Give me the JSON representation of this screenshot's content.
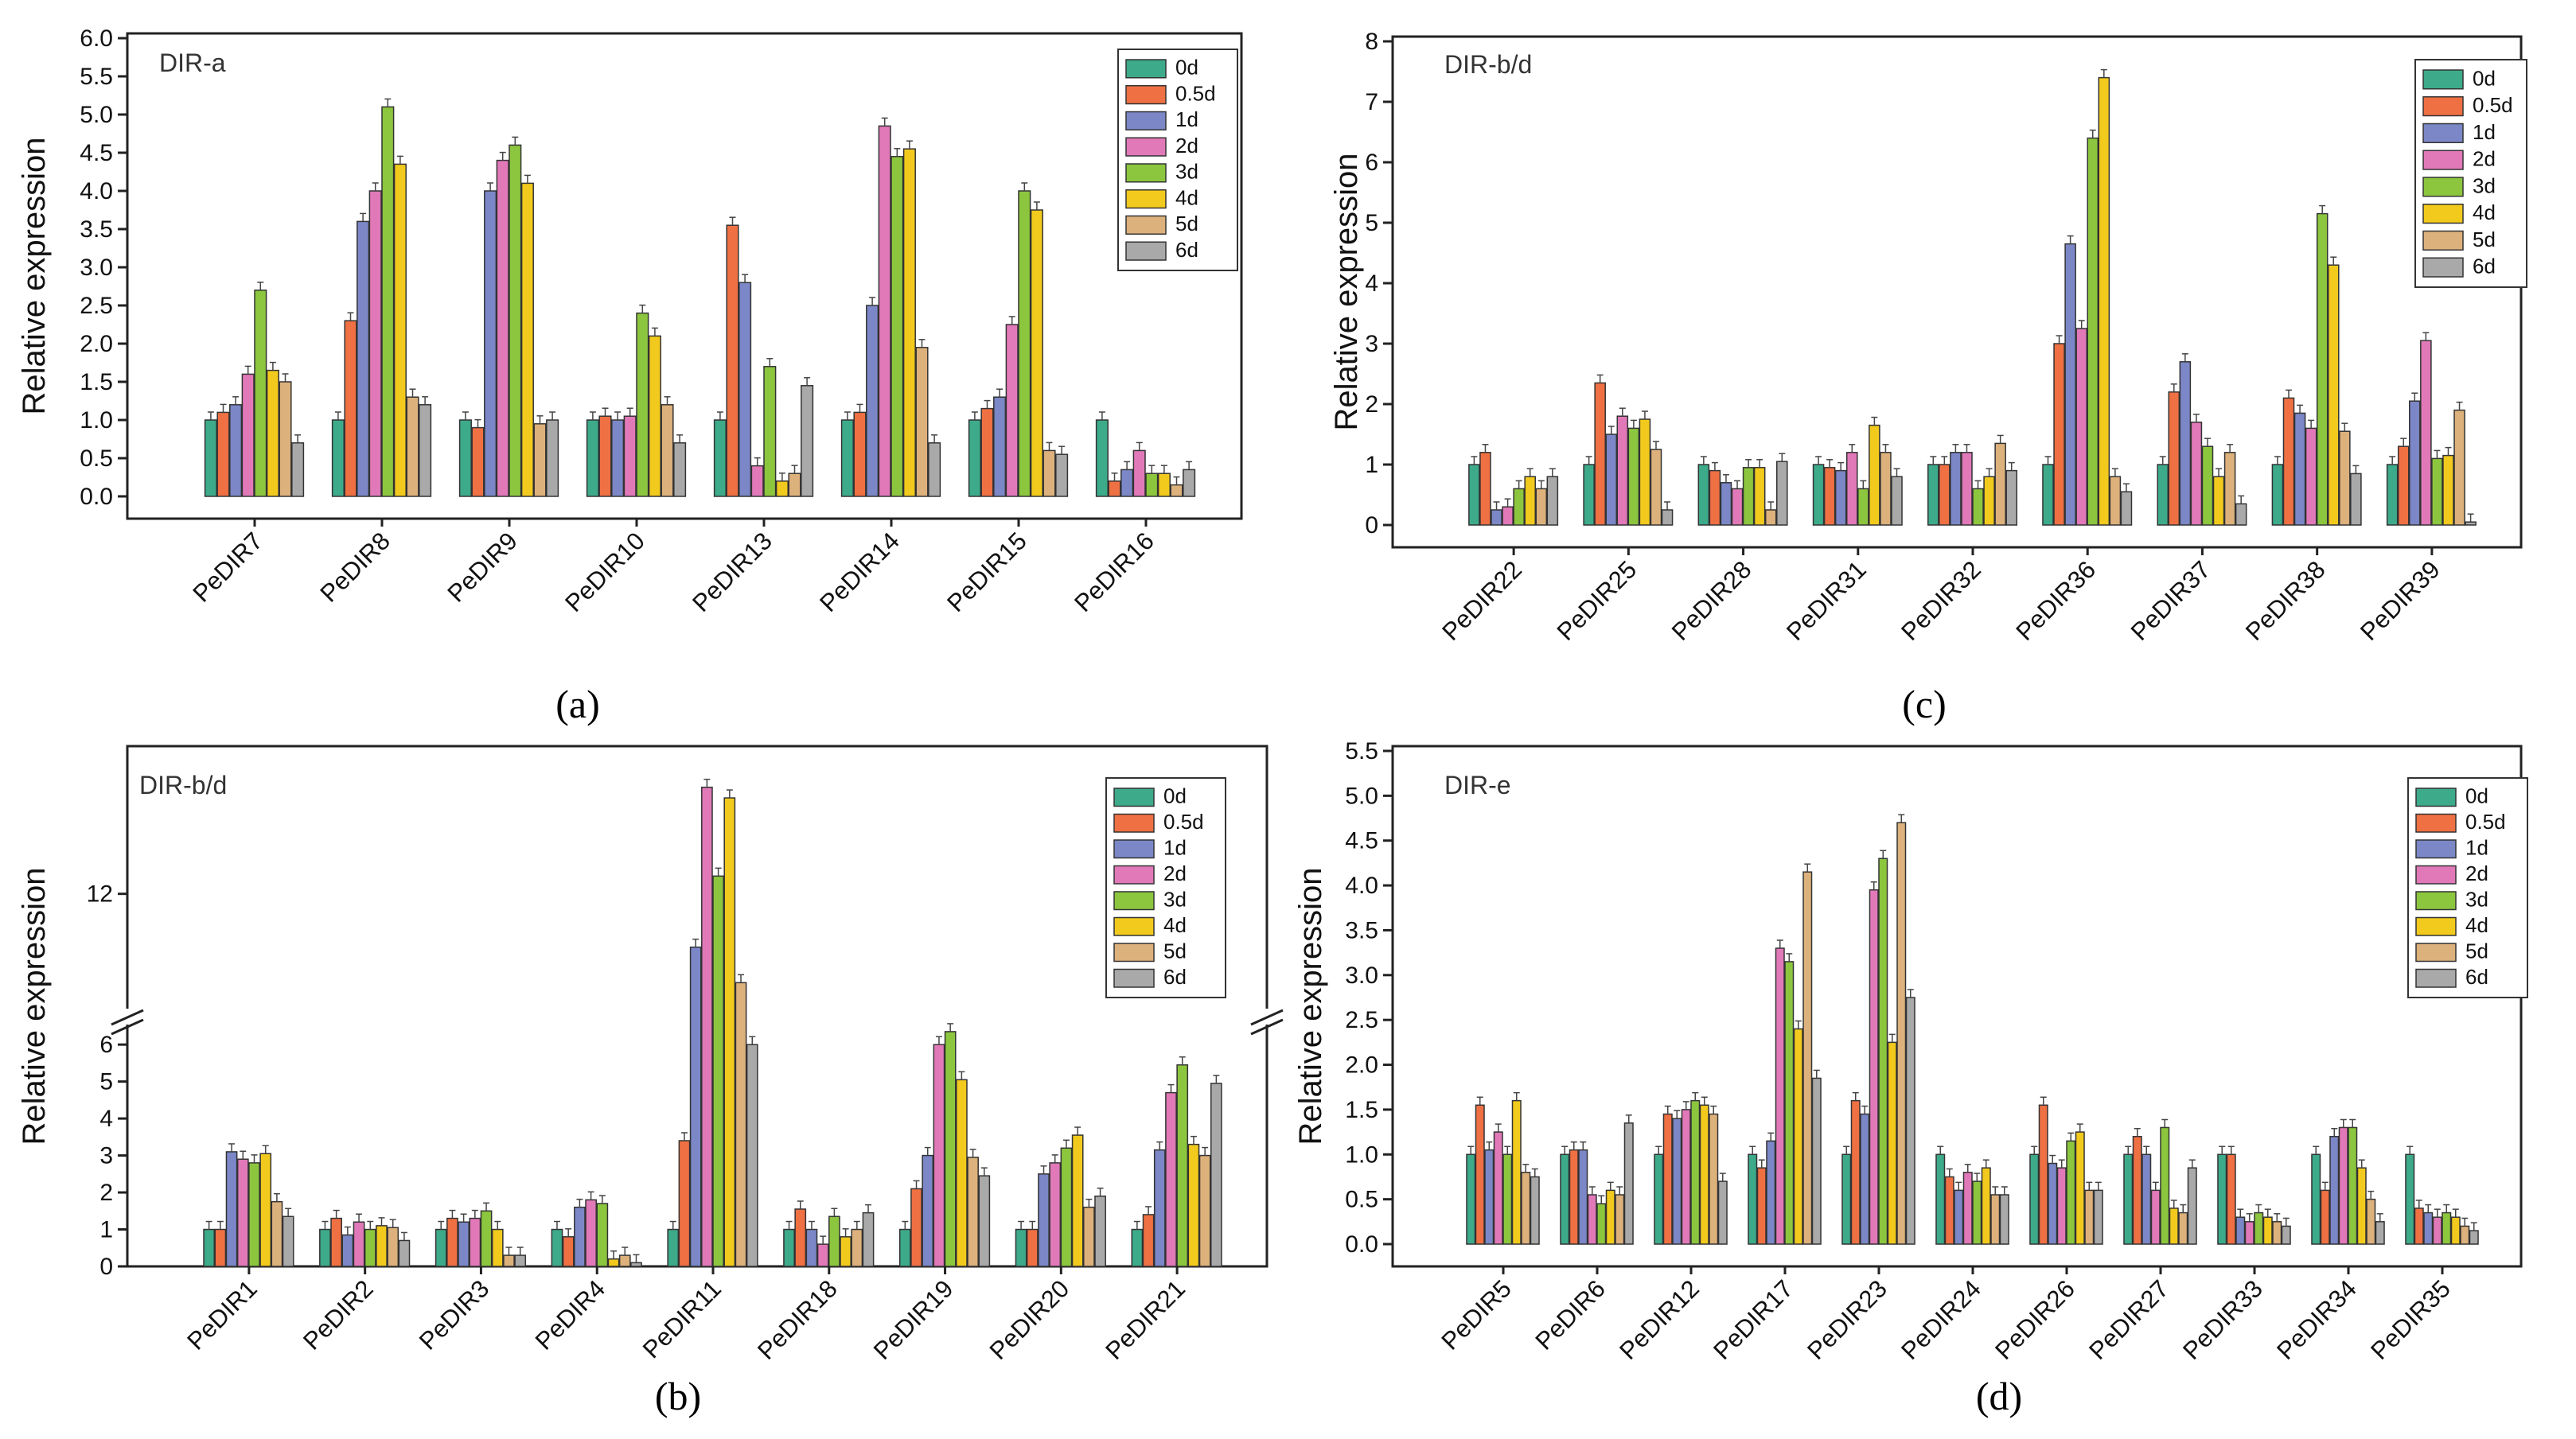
{
  "figure": {
    "captions": [
      "(a)",
      "(c)",
      "(b)",
      "(d)"
    ],
    "series_names": [
      "0d",
      "0.5d",
      "1d",
      "2d",
      "3d",
      "4d",
      "5d",
      "6d"
    ],
    "series_colors": [
      "#3daa8a",
      "#ef7043",
      "#7b87c6",
      "#e179b9",
      "#8cc63e",
      "#f2ca1d",
      "#ddb17c",
      "#a9a9a9"
    ]
  },
  "chart_data": [
    {
      "type": "bar",
      "panel": "a",
      "title": "DIR-a",
      "xlabel": "",
      "ylabel": "Relative expression",
      "ylim": [
        0,
        6
      ],
      "yticks": [
        "0.0",
        "0.5",
        "1.0",
        "1.5",
        "2.0",
        "2.5",
        "3.0",
        "3.5",
        "4.0",
        "4.5",
        "5.0",
        "5.5",
        "6.0"
      ],
      "legend_position": "top-right",
      "categories": [
        "PeDIR7",
        "PeDIR8",
        "PeDIR9",
        "PeDIR10",
        "PeDIR13",
        "PeDIR14",
        "PeDIR15",
        "PeDIR16"
      ],
      "series": [
        {
          "name": "0d",
          "values": [
            1.0,
            1.0,
            1.0,
            1.0,
            1.0,
            1.0,
            1.0,
            1.0
          ]
        },
        {
          "name": "0.5d",
          "values": [
            1.1,
            2.3,
            0.9,
            1.05,
            3.55,
            1.1,
            1.15,
            0.2
          ]
        },
        {
          "name": "1d",
          "values": [
            1.2,
            3.6,
            4.0,
            1.0,
            2.8,
            2.5,
            1.3,
            0.35
          ]
        },
        {
          "name": "2d",
          "values": [
            1.6,
            4.0,
            4.4,
            1.05,
            0.4,
            4.85,
            2.25,
            0.6
          ]
        },
        {
          "name": "3d",
          "values": [
            2.7,
            5.1,
            4.6,
            2.4,
            1.7,
            4.45,
            4.0,
            0.3
          ]
        },
        {
          "name": "4d",
          "values": [
            1.65,
            4.35,
            4.1,
            2.1,
            0.2,
            4.55,
            3.75,
            0.3
          ]
        },
        {
          "name": "5d",
          "values": [
            1.5,
            1.3,
            0.95,
            1.2,
            0.3,
            1.95,
            0.6,
            0.15
          ]
        },
        {
          "name": "6d",
          "values": [
            0.7,
            1.2,
            1.0,
            0.7,
            1.45,
            0.7,
            0.55,
            0.35
          ]
        }
      ]
    },
    {
      "type": "bar",
      "panel": "c",
      "title": "DIR-b/d",
      "xlabel": "",
      "ylabel": "Relative expression",
      "ylim": [
        0,
        8
      ],
      "yticks": [
        "0",
        "1",
        "2",
        "3",
        "4",
        "5",
        "6",
        "7",
        "8"
      ],
      "legend_position": "top-right",
      "categories": [
        "PeDIR22",
        "PeDIR25",
        "PeDIR28",
        "PeDIR31",
        "PeDIR32",
        "PeDIR36",
        "PeDIR37",
        "PeDIR38",
        "PeDIR39"
      ],
      "series": [
        {
          "name": "0d",
          "values": [
            1.0,
            1.0,
            1.0,
            1.0,
            1.0,
            1.0,
            1.0,
            1.0,
            1.0
          ]
        },
        {
          "name": "0.5d",
          "values": [
            1.2,
            2.35,
            0.9,
            0.95,
            1.0,
            3.0,
            2.2,
            2.1,
            1.3
          ]
        },
        {
          "name": "1d",
          "values": [
            0.25,
            1.5,
            0.7,
            0.9,
            1.2,
            4.65,
            2.7,
            1.85,
            2.05
          ]
        },
        {
          "name": "2d",
          "values": [
            0.3,
            1.8,
            0.6,
            1.2,
            1.2,
            3.25,
            1.7,
            1.6,
            3.05
          ]
        },
        {
          "name": "3d",
          "values": [
            0.6,
            1.6,
            0.95,
            0.6,
            0.6,
            6.4,
            1.3,
            5.15,
            1.1
          ]
        },
        {
          "name": "4d",
          "values": [
            0.8,
            1.75,
            0.95,
            1.65,
            0.8,
            7.4,
            0.8,
            4.3,
            1.15
          ]
        },
        {
          "name": "5d",
          "values": [
            0.6,
            1.25,
            0.25,
            1.2,
            1.35,
            0.8,
            1.2,
            1.55,
            1.9
          ]
        },
        {
          "name": "6d",
          "values": [
            0.8,
            0.25,
            1.05,
            0.8,
            0.9,
            0.55,
            0.35,
            0.85,
            0.05
          ]
        }
      ]
    },
    {
      "type": "bar",
      "panel": "b",
      "title": "DIR-b/d",
      "xlabel": "",
      "ylabel": "Relative expression",
      "ylim": [
        0,
        16
      ],
      "axis_break": {
        "low": 6.8,
        "high": 8.5
      },
      "yticks": [
        "0",
        "1",
        "2",
        "3",
        "4",
        "5",
        "6",
        "12"
      ],
      "legend_position": "top-right",
      "categories": [
        "PeDIR1",
        "PeDIR2",
        "PeDIR3",
        "PeDIR4",
        "PeDIR11",
        "PeDIR18",
        "PeDIR19",
        "PeDIR20",
        "PeDIR21"
      ],
      "series": [
        {
          "name": "0d",
          "values": [
            1.0,
            1.0,
            1.0,
            1.0,
            1.0,
            1.0,
            1.0,
            1.0,
            1.0
          ]
        },
        {
          "name": "0.5d",
          "values": [
            1.0,
            1.3,
            1.3,
            0.8,
            3.4,
            1.55,
            2.1,
            1.0,
            1.4
          ]
        },
        {
          "name": "1d",
          "values": [
            3.1,
            0.85,
            1.2,
            1.6,
            10.5,
            1.0,
            3.0,
            2.5,
            3.15
          ]
        },
        {
          "name": "2d",
          "values": [
            2.9,
            1.2,
            1.3,
            1.8,
            15.0,
            0.6,
            6.0,
            2.8,
            4.7
          ]
        },
        {
          "name": "3d",
          "values": [
            2.8,
            1.0,
            1.5,
            1.7,
            12.5,
            1.35,
            6.35,
            3.2,
            5.45
          ]
        },
        {
          "name": "4d",
          "values": [
            3.05,
            1.1,
            1.0,
            0.2,
            14.7,
            0.8,
            5.05,
            3.55,
            3.3
          ]
        },
        {
          "name": "5d",
          "values": [
            1.75,
            1.05,
            0.3,
            0.3,
            9.5,
            1.0,
            2.95,
            1.6,
            3.0
          ]
        },
        {
          "name": "6d",
          "values": [
            1.35,
            0.7,
            0.3,
            0.1,
            6.0,
            1.45,
            2.45,
            1.9,
            4.95
          ]
        }
      ]
    },
    {
      "type": "bar",
      "panel": "d",
      "title": "DIR-e",
      "xlabel": "",
      "ylabel": "Relative expression",
      "ylim": [
        0,
        5.5
      ],
      "yticks": [
        "0.0",
        "0.5",
        "1.0",
        "1.5",
        "2.0",
        "2.5",
        "3.0",
        "3.5",
        "4.0",
        "4.5",
        "5.0",
        "5.5"
      ],
      "legend_position": "top-right",
      "categories": [
        "PeDIR5",
        "PeDIR6",
        "PeDIR12",
        "PeDIR17",
        "PeDIR23",
        "PeDIR24",
        "PeDIR26",
        "PeDIR27",
        "PeDIR33",
        "PeDIR34",
        "PeDIR35"
      ],
      "series": [
        {
          "name": "0d",
          "values": [
            1.0,
            1.0,
            1.0,
            1.0,
            1.0,
            1.0,
            1.0,
            1.0,
            1.0,
            1.0,
            1.0
          ]
        },
        {
          "name": "0.5d",
          "values": [
            1.55,
            1.05,
            1.45,
            0.85,
            1.6,
            0.75,
            1.55,
            1.2,
            1.0,
            0.6,
            0.4
          ]
        },
        {
          "name": "1d",
          "values": [
            1.05,
            1.05,
            1.4,
            1.15,
            1.45,
            0.6,
            0.9,
            1.0,
            0.3,
            1.2,
            0.35
          ]
        },
        {
          "name": "2d",
          "values": [
            1.25,
            0.55,
            1.5,
            3.3,
            3.95,
            0.8,
            0.85,
            0.6,
            0.25,
            1.3,
            0.3
          ]
        },
        {
          "name": "3d",
          "values": [
            1.0,
            0.45,
            1.6,
            3.15,
            4.3,
            0.7,
            1.15,
            1.3,
            0.35,
            1.3,
            0.35
          ]
        },
        {
          "name": "4d",
          "values": [
            1.6,
            0.6,
            1.55,
            2.4,
            2.25,
            0.85,
            1.25,
            0.4,
            0.3,
            0.85,
            0.3
          ]
        },
        {
          "name": "5d",
          "values": [
            0.8,
            0.55,
            1.45,
            4.15,
            4.7,
            0.55,
            0.6,
            0.35,
            0.25,
            0.5,
            0.2
          ]
        },
        {
          "name": "6d",
          "values": [
            0.75,
            1.35,
            0.7,
            1.85,
            2.75,
            0.55,
            0.6,
            0.85,
            0.2,
            0.25,
            0.15
          ]
        }
      ]
    }
  ]
}
